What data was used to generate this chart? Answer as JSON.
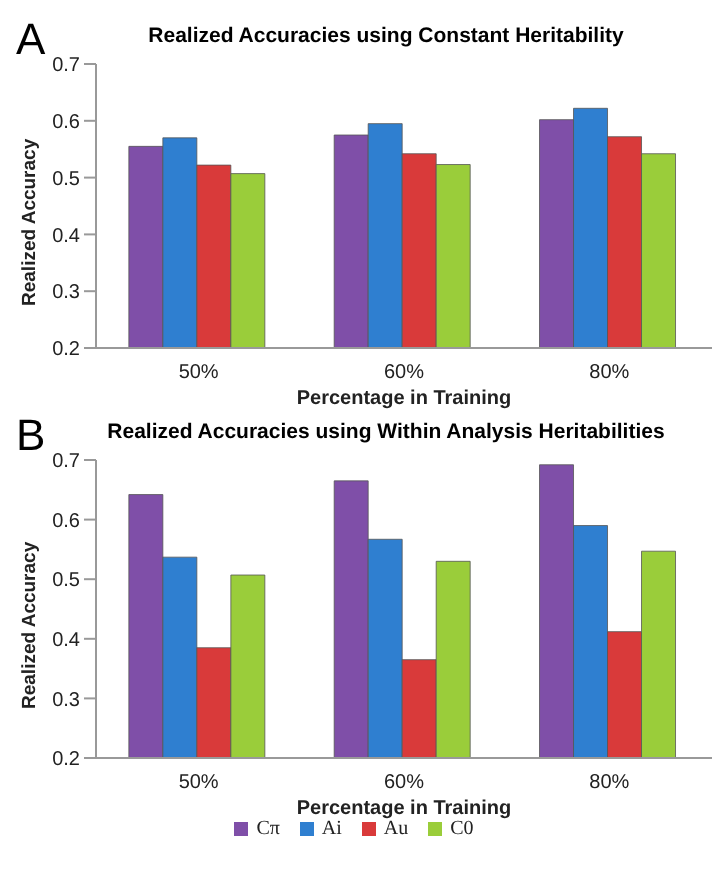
{
  "chart_data": [
    {
      "type": "bar",
      "title": "Realized Accuracies using Constant Heritability",
      "xlabel": "Percentage in Training",
      "ylabel": "Realized Accuracy",
      "annotations": [
        "A"
      ],
      "categories": [
        "50%",
        "60%",
        "80%"
      ],
      "series": [
        {
          "color": "#7f4fa8",
          "values": [
            0.555,
            0.575,
            0.602
          ]
        },
        {
          "color": "#2f7fd0",
          "values": [
            0.57,
            0.595,
            0.622
          ]
        },
        {
          "color": "#d93a3a",
          "values": [
            0.522,
            0.542,
            0.572
          ]
        },
        {
          "color": "#9acd3a",
          "values": [
            0.507,
            0.523,
            0.542
          ]
        }
      ],
      "ylim": [
        0.2,
        0.7
      ],
      "yticks": [
        0.2,
        0.3,
        0.4,
        0.5,
        0.6,
        0.7
      ],
      "grid": false,
      "legend": false
    },
    {
      "type": "bar",
      "title": "Realized Accuracies using Within Analysis Heritabilities",
      "xlabel": "Percentage in Training",
      "ylabel": "Realized Accuracy",
      "annotations": [
        "B"
      ],
      "categories": [
        "50%",
        "60%",
        "80%"
      ],
      "series": [
        {
          "name": "Cπ",
          "color": "#7f4fa8",
          "values": [
            0.642,
            0.665,
            0.692
          ]
        },
        {
          "name": "Ai",
          "color": "#2f7fd0",
          "values": [
            0.537,
            0.567,
            0.59
          ]
        },
        {
          "name": "Au",
          "color": "#d93a3a",
          "values": [
            0.385,
            0.365,
            0.412
          ]
        },
        {
          "name": "C0",
          "color": "#9acd3a",
          "values": [
            0.507,
            0.53,
            0.547
          ]
        }
      ],
      "ylim": [
        0.2,
        0.7
      ],
      "yticks": [
        0.2,
        0.3,
        0.4,
        0.5,
        0.6,
        0.7
      ],
      "grid": false,
      "legend": "bottom"
    }
  ]
}
